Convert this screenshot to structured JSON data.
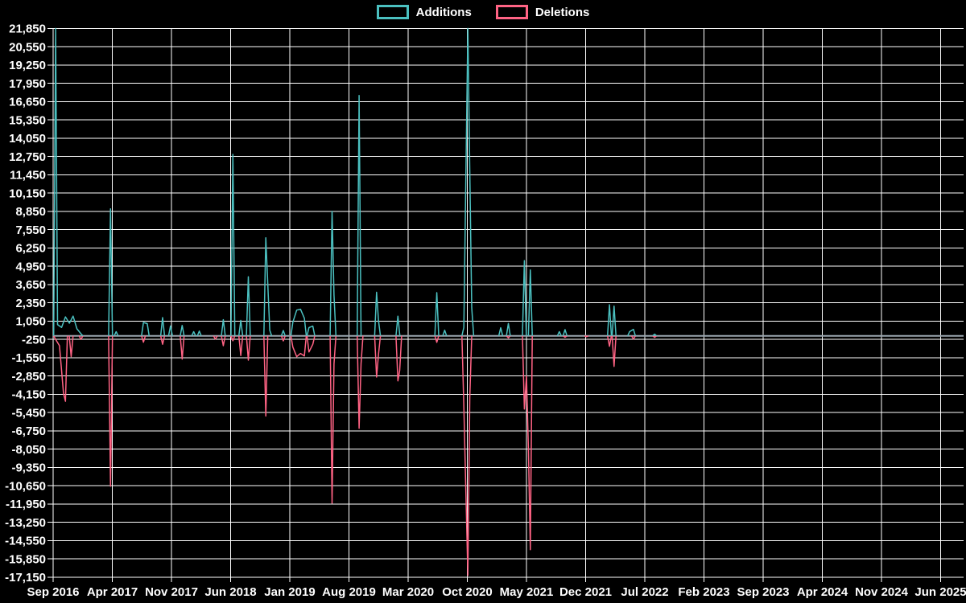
{
  "legend": {
    "items": [
      {
        "label": "Additions",
        "color": "#4bc0c0"
      },
      {
        "label": "Deletions",
        "color": "#ff6384"
      }
    ]
  },
  "chart_data": {
    "type": "line",
    "title": "",
    "legend_position": "top",
    "grid": true,
    "background": "#000000",
    "grid_color": "#ffffff",
    "baseline_color": "#9aa5ae",
    "x_axis": {
      "start_month": "2016-09",
      "months_per_tick": 7,
      "tick_labels": [
        "Sep 2016",
        "Apr 2017",
        "Nov 2017",
        "Jun 2018",
        "Jan 2019",
        "Aug 2019",
        "Mar 2020",
        "Oct 2020",
        "May 2021",
        "Dec 2021",
        "Jul 2022",
        "Feb 2023",
        "Sep 2023",
        "Apr 2024",
        "Nov 2024",
        "Jun 2025"
      ]
    },
    "y_axis": {
      "max": 21850,
      "min": -17150,
      "tick_step": 1300,
      "tick_labels": [
        "21,850",
        "20,550",
        "19,250",
        "17,950",
        "16,650",
        "15,350",
        "14,050",
        "12,750",
        "11,450",
        "10,150",
        "8,850",
        "7,550",
        "6,250",
        "4,950",
        "3,650",
        "2,350",
        "1,050",
        "-250",
        "-1,550",
        "-2,850",
        "-4,150",
        "-5,450",
        "-6,750",
        "-8,050",
        "-9,350",
        "-10,650",
        "-11,950",
        "-13,250",
        "-14,550",
        "-15,850",
        "-17,150"
      ]
    },
    "series": [
      {
        "name": "Additions",
        "color": "#4bc0c0",
        "points": [
          [
            "2016-09-10",
            21900
          ],
          [
            "2016-09-17",
            800
          ],
          [
            "2016-10-01",
            600
          ],
          [
            "2016-10-15",
            1350
          ],
          [
            "2016-10-29",
            900
          ],
          [
            "2016-11-12",
            1400
          ],
          [
            "2016-11-26",
            500
          ],
          [
            "2016-12-10",
            150
          ],
          [
            "2017-03-25",
            9030
          ],
          [
            "2017-04-15",
            300
          ],
          [
            "2017-07-22",
            950
          ],
          [
            "2017-08-05",
            870
          ],
          [
            "2017-09-30",
            1300
          ],
          [
            "2017-10-28",
            700
          ],
          [
            "2017-12-09",
            740
          ],
          [
            "2018-01-20",
            300
          ],
          [
            "2018-02-10",
            340
          ],
          [
            "2018-05-05",
            1150
          ],
          [
            "2018-06-09",
            12900
          ],
          [
            "2018-07-07",
            1100
          ],
          [
            "2018-08-04",
            4200
          ],
          [
            "2018-10-06",
            6970
          ],
          [
            "2018-10-20",
            400
          ],
          [
            "2018-12-08",
            380
          ],
          [
            "2019-01-12",
            970
          ],
          [
            "2019-01-26",
            1830
          ],
          [
            "2019-02-09",
            1890
          ],
          [
            "2019-02-23",
            1250
          ],
          [
            "2019-03-09",
            590
          ],
          [
            "2019-03-23",
            690
          ],
          [
            "2019-06-01",
            8850
          ],
          [
            "2019-06-08",
            2900
          ],
          [
            "2019-09-07",
            17090
          ],
          [
            "2019-11-09",
            3100
          ],
          [
            "2019-11-16",
            1070
          ],
          [
            "2020-01-25",
            1400
          ],
          [
            "2020-06-13",
            3070
          ],
          [
            "2020-07-11",
            400
          ],
          [
            "2020-09-19",
            600
          ],
          [
            "2020-10-03",
            21900
          ],
          [
            "2020-10-10",
            11650
          ],
          [
            "2020-10-17",
            2000
          ],
          [
            "2021-01-30",
            570
          ],
          [
            "2021-02-27",
            875
          ],
          [
            "2021-04-24",
            5350
          ],
          [
            "2021-05-15",
            4690
          ],
          [
            "2021-08-28",
            300
          ],
          [
            "2021-09-18",
            440
          ],
          [
            "2022-02-26",
            2210
          ],
          [
            "2022-03-12",
            2110
          ],
          [
            "2022-05-07",
            300
          ],
          [
            "2022-05-21",
            460
          ],
          [
            "2022-08-06",
            120
          ]
        ]
      },
      {
        "name": "Deletions",
        "color": "#ff6384",
        "points": [
          [
            "2016-09-10",
            -250
          ],
          [
            "2016-09-24",
            -700
          ],
          [
            "2016-10-08",
            -4100
          ],
          [
            "2016-10-15",
            -4650
          ],
          [
            "2016-11-05",
            -1480
          ],
          [
            "2016-12-10",
            -250
          ],
          [
            "2017-03-25",
            -10690
          ],
          [
            "2017-07-22",
            -450
          ],
          [
            "2017-09-30",
            -600
          ],
          [
            "2017-12-09",
            -1650
          ],
          [
            "2018-04-07",
            -230
          ],
          [
            "2018-05-05",
            -700
          ],
          [
            "2018-06-09",
            -350
          ],
          [
            "2018-07-07",
            -1400
          ],
          [
            "2018-08-04",
            -1730
          ],
          [
            "2018-10-06",
            -5700
          ],
          [
            "2018-12-08",
            -360
          ],
          [
            "2019-01-12",
            -800
          ],
          [
            "2019-01-26",
            -1480
          ],
          [
            "2019-02-09",
            -1250
          ],
          [
            "2019-02-23",
            -1430
          ],
          [
            "2019-03-09",
            -1150
          ],
          [
            "2019-03-23",
            -600
          ],
          [
            "2019-06-01",
            -11900
          ],
          [
            "2019-06-08",
            -2000
          ],
          [
            "2019-09-07",
            -6570
          ],
          [
            "2019-09-14",
            -2000
          ],
          [
            "2019-11-09",
            -2930
          ],
          [
            "2019-11-16",
            -1310
          ],
          [
            "2020-01-25",
            -3200
          ],
          [
            "2020-02-01",
            -2460
          ],
          [
            "2020-06-13",
            -460
          ],
          [
            "2020-09-19",
            -5030
          ],
          [
            "2020-10-03",
            -17030
          ],
          [
            "2020-10-10",
            -4350
          ],
          [
            "2021-02-27",
            -150
          ],
          [
            "2021-04-24",
            -5200
          ],
          [
            "2021-05-01",
            -2850
          ],
          [
            "2021-05-08",
            -8000
          ],
          [
            "2021-05-15",
            -15200
          ],
          [
            "2021-09-18",
            -100
          ],
          [
            "2021-12-04",
            -60
          ],
          [
            "2022-02-26",
            -740
          ],
          [
            "2022-03-12",
            -2170
          ],
          [
            "2022-05-21",
            -230
          ],
          [
            "2022-08-06",
            -110
          ]
        ]
      }
    ]
  }
}
